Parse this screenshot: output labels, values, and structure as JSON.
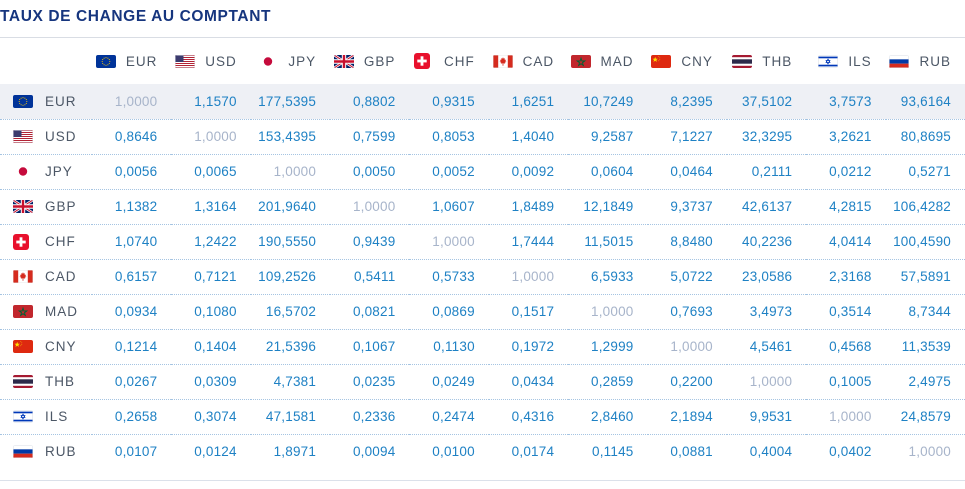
{
  "title": "TAUX DE CHANGE AU COMPTANT",
  "currencies": [
    "EUR",
    "USD",
    "JPY",
    "GBP",
    "CHF",
    "CAD",
    "MAD",
    "CNY",
    "THB",
    "ILS",
    "RUB"
  ],
  "rows": [
    {
      "currency": "EUR",
      "values": [
        "1,0000",
        "1,1570",
        "177,5395",
        "0,8802",
        "0,9315",
        "1,6251",
        "10,7249",
        "8,2395",
        "37,5102",
        "3,7573",
        "93,6164"
      ]
    },
    {
      "currency": "USD",
      "values": [
        "0,8646",
        "1,0000",
        "153,4395",
        "0,7599",
        "0,8053",
        "1,4040",
        "9,2587",
        "7,1227",
        "32,3295",
        "3,2621",
        "80,8695"
      ]
    },
    {
      "currency": "JPY",
      "values": [
        "0,0056",
        "0,0065",
        "1,0000",
        "0,0050",
        "0,0052",
        "0,0092",
        "0,0604",
        "0,0464",
        "0,2111",
        "0,0212",
        "0,5271"
      ]
    },
    {
      "currency": "GBP",
      "values": [
        "1,1382",
        "1,3164",
        "201,9640",
        "1,0000",
        "1,0607",
        "1,8489",
        "12,1849",
        "9,3737",
        "42,6137",
        "4,2815",
        "106,4282"
      ]
    },
    {
      "currency": "CHF",
      "values": [
        "1,0740",
        "1,2422",
        "190,5550",
        "0,9439",
        "1,0000",
        "1,7444",
        "11,5015",
        "8,8480",
        "40,2236",
        "4,0414",
        "100,4590"
      ]
    },
    {
      "currency": "CAD",
      "values": [
        "0,6157",
        "0,7121",
        "109,2526",
        "0,5411",
        "0,5733",
        "1,0000",
        "6,5933",
        "5,0722",
        "23,0586",
        "2,3168",
        "57,5891"
      ]
    },
    {
      "currency": "MAD",
      "values": [
        "0,0934",
        "0,1080",
        "16,5702",
        "0,0821",
        "0,0869",
        "0,1517",
        "1,0000",
        "0,7693",
        "3,4973",
        "0,3514",
        "8,7344"
      ]
    },
    {
      "currency": "CNY",
      "values": [
        "0,1214",
        "0,1404",
        "21,5396",
        "0,1067",
        "0,1130",
        "0,1972",
        "1,2999",
        "1,0000",
        "4,5461",
        "0,4568",
        "11,3539"
      ]
    },
    {
      "currency": "THB",
      "values": [
        "0,0267",
        "0,0309",
        "4,7381",
        "0,0235",
        "0,0249",
        "0,0434",
        "0,2859",
        "0,2200",
        "1,0000",
        "0,1005",
        "2,4975"
      ]
    },
    {
      "currency": "ILS",
      "values": [
        "0,2658",
        "0,3074",
        "47,1581",
        "0,2336",
        "0,2474",
        "0,4316",
        "2,8460",
        "2,1894",
        "9,9531",
        "1,0000",
        "24,8579"
      ]
    },
    {
      "currency": "RUB",
      "values": [
        "0,0107",
        "0,0124",
        "1,8971",
        "0,0094",
        "0,0100",
        "0,0174",
        "0,1145",
        "0,0881",
        "0,4004",
        "0,0402",
        "1,0000"
      ]
    }
  ],
  "highlighted_row_currency": "EUR",
  "colors": {
    "title": "#16357e",
    "value": "#1e81c4",
    "muted": "#a7b4ca",
    "code": "#4c5766",
    "highlight": "#eef0f5",
    "dotted": "#a5c4e2"
  },
  "icons": {
    "flags": [
      "eur-flag-icon",
      "usd-flag-icon",
      "jpy-flag-icon",
      "gbp-flag-icon",
      "chf-flag-icon",
      "cad-flag-icon",
      "mad-flag-icon",
      "cny-flag-icon",
      "thb-flag-icon",
      "ils-flag-icon",
      "rub-flag-icon"
    ]
  }
}
